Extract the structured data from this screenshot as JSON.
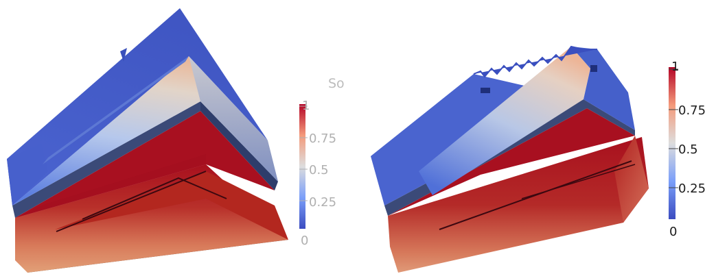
{
  "left_panel": {
    "colorbar": {
      "title": "So",
      "labels": [
        "1",
        "0.75",
        "0.5",
        "0.25",
        "0"
      ]
    }
  },
  "right_panel": {
    "colorbar": {
      "labels": [
        "1",
        "0.75",
        "0.5",
        "0.25",
        "0"
      ]
    }
  },
  "colormap": {
    "low": "#3b4cc0",
    "mid": "#dddddd",
    "high": "#b40426"
  }
}
